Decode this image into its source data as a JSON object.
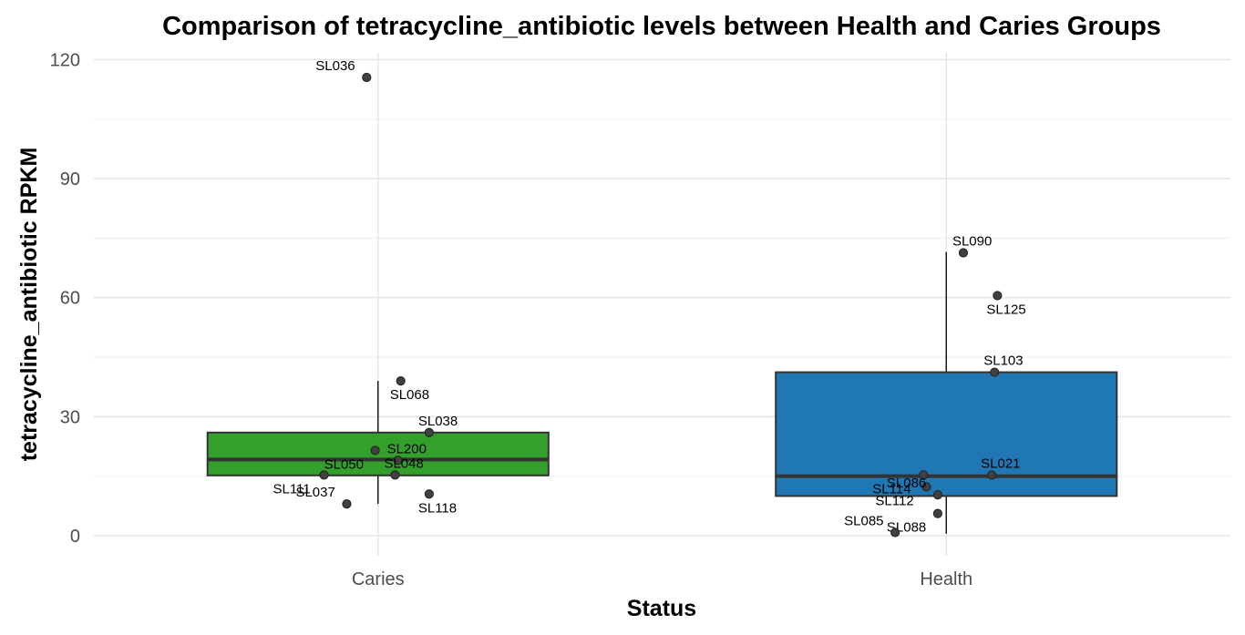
{
  "chart_data": {
    "type": "boxplot",
    "title": "Comparison of tetracycline_antibiotic levels between Health and Caries Groups",
    "xlabel": "Status",
    "ylabel": "tetracycline_antibiotic RPKM",
    "ylim": [
      -5,
      121
    ],
    "yticks": [
      0,
      30,
      60,
      90,
      120
    ],
    "yminor": [
      15,
      45,
      75,
      105
    ],
    "grid": true,
    "legend": "none",
    "categories": [
      "Caries",
      "Health"
    ],
    "boxes": [
      {
        "category": "Caries",
        "color": "#33a02c",
        "q1": 15.2,
        "median": 19.2,
        "q3": 26.0,
        "whisker_low": 8.0,
        "whisker_high": 39.0,
        "points": [
          {
            "label": "SL036",
            "y": 115.5,
            "jitter": -0.02
          },
          {
            "label": "SL068",
            "y": 39.0,
            "jitter": 0.04
          },
          {
            "label": "SL038",
            "y": 26.0,
            "jitter": 0.09
          },
          {
            "label": "SL050",
            "y": 21.5,
            "jitter": -0.005
          },
          {
            "label": "SL200",
            "y": 19.0,
            "jitter": 0.035
          },
          {
            "label": "SL111",
            "y": 15.3,
            "jitter": -0.095
          },
          {
            "label": "SL048",
            "y": 15.3,
            "jitter": 0.03
          },
          {
            "label": "SL118",
            "y": 10.5,
            "jitter": 0.09
          },
          {
            "label": "SL037",
            "y": 8.0,
            "jitter": -0.055
          }
        ]
      },
      {
        "category": "Health",
        "color": "#1f78b4",
        "q1": 10.0,
        "median": 15.0,
        "q3": 41.2,
        "whisker_low": 0.5,
        "whisker_high": 71.5,
        "points": [
          {
            "label": "SL090",
            "y": 71.3,
            "jitter": 0.03
          },
          {
            "label": "SL125",
            "y": 60.5,
            "jitter": 0.09
          },
          {
            "label": "SL103",
            "y": 41.2,
            "jitter": 0.085
          },
          {
            "label": "SL114",
            "y": 15.3,
            "jitter": -0.04
          },
          {
            "label": "SL021",
            "y": 15.3,
            "jitter": 0.08
          },
          {
            "label": "SL112",
            "y": 12.3,
            "jitter": -0.035
          },
          {
            "label": "SL086",
            "y": 10.3,
            "jitter": -0.015
          },
          {
            "label": "SL088",
            "y": 5.6,
            "jitter": -0.015
          },
          {
            "label": "SL085",
            "y": 0.8,
            "jitter": -0.09
          }
        ]
      }
    ]
  }
}
